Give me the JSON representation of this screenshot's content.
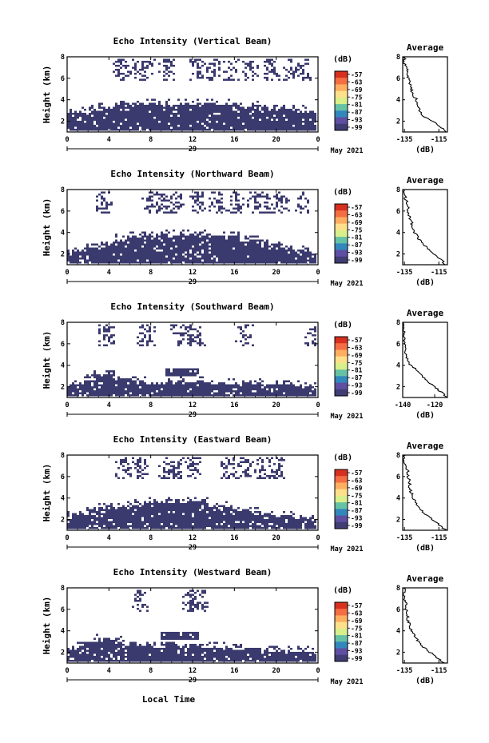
{
  "figure": {
    "xlabel": "Local Time",
    "date_label": "May 2021",
    "colorbar_unit": "(dB)",
    "colorbar_ticks": [
      "-57",
      "-63",
      "-69",
      "-75",
      "-81",
      "-87",
      "-93",
      "-99"
    ],
    "colorbar_colors": [
      "#d7301f",
      "#f46d43",
      "#fdae61",
      "#fee08b",
      "#d9ef8b",
      "#66c2a5",
      "#3288bd",
      "#5e4fa2",
      "#3f3d73"
    ],
    "heatmap_fill": "#3b3a6e",
    "x_ticks": [
      "0",
      "4",
      "8",
      "12",
      "16",
      "20",
      "0"
    ],
    "y_ticks": [
      "2",
      "4",
      "6",
      "8"
    ],
    "day_label": "29",
    "ylabel": "Height (km)",
    "avg_title": "Average",
    "avg_xlabel": "(dB)"
  },
  "chart_data": [
    {
      "type": "heatmap",
      "title": "Echo Intensity (Vertical Beam)",
      "x_range": [
        0,
        24
      ],
      "ylim": [
        1,
        8
      ],
      "low_layer_top": [
        2.9,
        3.0,
        3.1,
        3.3,
        3.4,
        3.5,
        3.6,
        3.7,
        3.8,
        3.8,
        3.8,
        3.8,
        3.8,
        3.8,
        3.8,
        3.7,
        3.7,
        3.6,
        3.5,
        3.4,
        3.3,
        3.2,
        3.2,
        3.1,
        3.0
      ],
      "upper_echo": [
        [
          5.3,
          7.8
        ],
        [
          6.5,
          7.8
        ],
        [
          7.5,
          7.8
        ],
        [
          9.5,
          7.8
        ],
        [
          12.5,
          7.8
        ],
        [
          14.0,
          7.8
        ],
        [
          15.5,
          7.8
        ],
        [
          17.5,
          7.8
        ],
        [
          19.5,
          7.8
        ],
        [
          21.5,
          7.8
        ],
        [
          22.5,
          7.8
        ]
      ],
      "avg_profile": {
        "xlim": [
          -136,
          -110
        ],
        "xticks": [
          "-135",
          "-115"
        ],
        "height": [
          1.0,
          1.5,
          2.0,
          2.5,
          3.0,
          3.5,
          4.0,
          4.5,
          5.0,
          5.5,
          6.0,
          6.5,
          7.0,
          7.5,
          8.0
        ],
        "db": [
          -111,
          -114,
          -119,
          -124,
          -126,
          -127,
          -128,
          -130,
          -131,
          -132,
          -133,
          -133,
          -134,
          -135,
          -135
        ]
      }
    },
    {
      "type": "heatmap",
      "title": "Echo Intensity (Northward Beam)",
      "x_range": [
        0,
        24
      ],
      "ylim": [
        1,
        8
      ],
      "low_layer_top": [
        2.3,
        2.4,
        2.6,
        2.9,
        3.2,
        3.5,
        3.7,
        3.8,
        3.9,
        3.9,
        3.9,
        3.9,
        3.9,
        3.9,
        3.9,
        3.8,
        3.7,
        3.5,
        3.3,
        3.1,
        2.9,
        2.7,
        2.5,
        2.4,
        2.3
      ],
      "upper_echo": [
        [
          3.5,
          7.8
        ],
        [
          8.0,
          7.8
        ],
        [
          9.0,
          7.8
        ],
        [
          10.5,
          7.8
        ],
        [
          12.5,
          7.8
        ],
        [
          14.5,
          7.8
        ],
        [
          16.0,
          7.8
        ],
        [
          18.0,
          7.8
        ],
        [
          19.0,
          7.8
        ],
        [
          20.5,
          7.8
        ],
        [
          22.5,
          7.8
        ]
      ],
      "avg_profile": {
        "xlim": [
          -136,
          -110
        ],
        "xticks": [
          "-135",
          "-115"
        ],
        "height": [
          1.0,
          1.5,
          2.0,
          2.5,
          3.0,
          3.5,
          4.0,
          4.5,
          5.0,
          5.5,
          6.0,
          6.5,
          7.0,
          7.5,
          8.0
        ],
        "db": [
          -111,
          -114,
          -118,
          -121,
          -125,
          -127,
          -129,
          -130,
          -131,
          -132,
          -133,
          -133,
          -134,
          -135,
          -135
        ]
      }
    },
    {
      "type": "heatmap",
      "title": "Echo Intensity (Southward Beam)",
      "x_range": [
        0,
        24
      ],
      "ylim": [
        1,
        8
      ],
      "low_layer_top": [
        2.2,
        2.5,
        2.9,
        3.2,
        3.5,
        2.9,
        2.7,
        2.6,
        2.5,
        2.5,
        2.6,
        2.7,
        2.6,
        2.6,
        2.5,
        2.5,
        2.4,
        2.4,
        2.4,
        2.3,
        2.3,
        2.2,
        2.2,
        2.1,
        2.0
      ],
      "upper_echo": [
        [
          3.8,
          7.8
        ],
        [
          7.5,
          7.8
        ],
        [
          10.8,
          7.8
        ],
        [
          11.5,
          7.8
        ],
        [
          12.5,
          7.8
        ],
        [
          17.0,
          7.8
        ],
        [
          23.5,
          7.8
        ]
      ],
      "mid_echo": [
        [
          9.5,
          3.0,
          12.5,
          3.8
        ]
      ],
      "avg_profile": {
        "xlim": [
          -140,
          -112
        ],
        "xticks": [
          "-140",
          "-120"
        ],
        "height": [
          1.0,
          1.5,
          2.0,
          2.5,
          3.0,
          3.5,
          4.0,
          4.5,
          5.0,
          5.5,
          6.0,
          6.5,
          7.0,
          7.5,
          8.0
        ],
        "db": [
          -112,
          -116,
          -120,
          -124,
          -128,
          -131,
          -135,
          -137,
          -138,
          -138,
          -139,
          -139,
          -139,
          -140,
          -140
        ]
      }
    },
    {
      "type": "heatmap",
      "title": "Echo Intensity (Eastward Beam)",
      "x_range": [
        0,
        24
      ],
      "ylim": [
        1,
        8
      ],
      "low_layer_top": [
        2.4,
        2.6,
        2.9,
        3.1,
        3.3,
        3.4,
        3.5,
        3.6,
        3.7,
        3.7,
        3.7,
        3.7,
        3.7,
        3.7,
        3.4,
        3.3,
        3.2,
        3.0,
        2.8,
        2.6,
        2.5,
        2.4,
        2.3,
        2.2,
        2.1
      ],
      "upper_echo": [
        [
          5.5,
          7.8
        ],
        [
          7.0,
          7.8
        ],
        [
          9.5,
          7.8
        ],
        [
          10.5,
          7.8
        ],
        [
          12.0,
          7.8
        ],
        [
          15.5,
          7.8
        ],
        [
          17.0,
          7.8
        ],
        [
          18.5,
          7.8
        ],
        [
          20.0,
          7.8
        ]
      ],
      "avg_profile": {
        "xlim": [
          -136,
          -110
        ],
        "xticks": [
          "-135",
          "-115"
        ],
        "height": [
          1.0,
          1.5,
          2.0,
          2.5,
          3.0,
          3.5,
          4.0,
          4.5,
          5.0,
          5.5,
          6.0,
          6.5,
          7.0,
          7.5,
          8.0
        ],
        "db": [
          -111,
          -115,
          -119,
          -123,
          -126,
          -128,
          -130,
          -131,
          -132,
          -132,
          -133,
          -133,
          -134,
          -135,
          -135
        ]
      }
    },
    {
      "type": "heatmap",
      "title": "Echo Intensity (Westward Beam)",
      "x_range": [
        0,
        24
      ],
      "ylim": [
        1,
        8
      ],
      "low_layer_top": [
        2.4,
        2.6,
        3.0,
        3.3,
        3.4,
        3.1,
        2.9,
        2.8,
        2.7,
        2.7,
        2.7,
        2.7,
        2.7,
        2.7,
        2.6,
        2.6,
        2.5,
        2.5,
        2.4,
        2.4,
        2.3,
        2.3,
        2.3,
        2.2,
        2.1
      ],
      "upper_echo": [
        [
          7.0,
          7.8
        ],
        [
          11.8,
          7.8
        ],
        [
          12.5,
          7.8
        ],
        [
          13.0,
          7.8
        ]
      ],
      "mid_echo": [
        [
          9.0,
          3.2,
          12.5,
          3.9
        ]
      ],
      "avg_profile": {
        "xlim": [
          -136,
          -110
        ],
        "xticks": [
          "-135",
          "-115"
        ],
        "height": [
          1.0,
          1.5,
          2.0,
          2.5,
          3.0,
          3.5,
          4.0,
          4.5,
          5.0,
          5.5,
          6.0,
          6.5,
          7.0,
          7.5,
          8.0
        ],
        "db": [
          -112,
          -116,
          -120,
          -124,
          -127,
          -129,
          -131,
          -132,
          -133,
          -133,
          -134,
          -134,
          -135,
          -135,
          -135
        ]
      }
    }
  ]
}
